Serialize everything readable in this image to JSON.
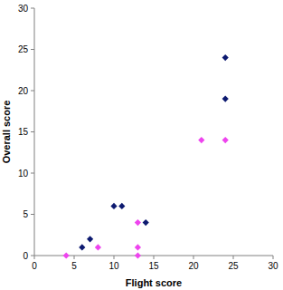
{
  "chart_data": {
    "type": "scatter",
    "x_label": "Flight score",
    "y_label": "Overall score",
    "xlim": [
      0,
      30
    ],
    "xticks": [
      0,
      5,
      10,
      15,
      20,
      25,
      30
    ],
    "ylim": [
      0,
      30
    ],
    "yticks": [
      0,
      5,
      10,
      15,
      20,
      25,
      30
    ],
    "grid": false,
    "series": [
      {
        "color": "#0d1a70",
        "marker": "diamond",
        "x": [
          6,
          7,
          10,
          11,
          14,
          24,
          24
        ],
        "values": [
          1,
          2,
          6,
          6,
          4,
          24,
          19
        ]
      },
      {
        "color": "#ee44ee",
        "marker": "diamond",
        "x": [
          4,
          8,
          13,
          13,
          13,
          21,
          24
        ],
        "values": [
          0,
          1,
          4,
          1,
          0,
          14,
          14
        ]
      }
    ]
  }
}
